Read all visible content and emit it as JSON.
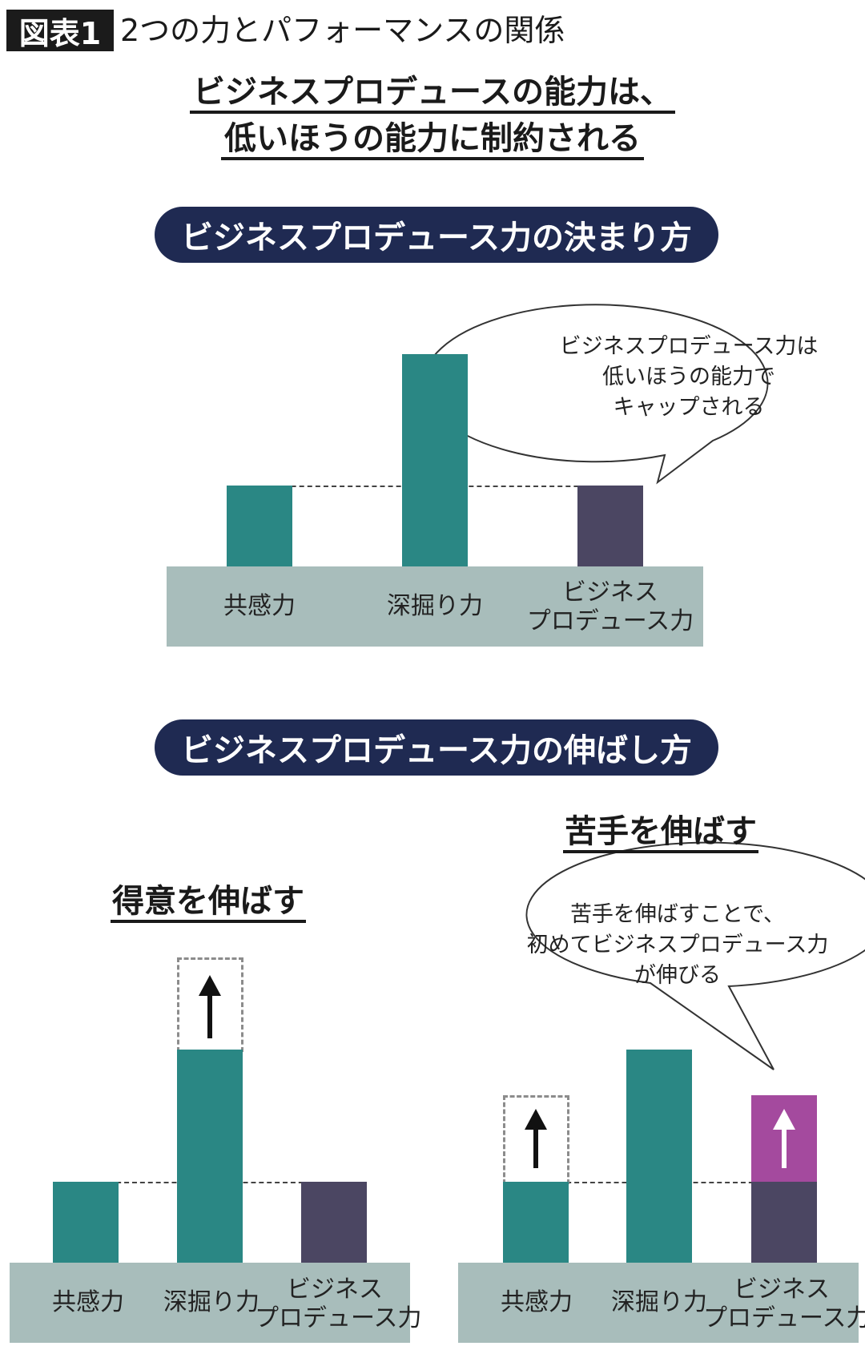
{
  "header": {
    "tag": "図表1",
    "title": "2つの力とパフォーマンスの関係"
  },
  "main_title": {
    "line1": "ビジネスプロデュースの能力は、",
    "line2": "低いほうの能力に制約される"
  },
  "section1": {
    "banner": "ビジネスプロデュース力の決まり方",
    "bubble": {
      "line1": "ビジネスプロデュース力は",
      "line2": "低いほうの能力で",
      "line3": "キャップされる"
    },
    "labels": {
      "empathy": "共感力",
      "digging": "深掘り力",
      "produce_line1": "ビジネス",
      "produce_line2": "プロデュース力"
    }
  },
  "section2": {
    "banner": "ビジネスプロデュース力の伸ばし方",
    "left": {
      "title": "得意を伸ばす",
      "labels": {
        "empathy": "共感力",
        "digging": "深掘り力",
        "produce_line1": "ビジネス",
        "produce_line2": "プロデュース力"
      }
    },
    "right": {
      "title": "苦手を伸ばす",
      "bubble": {
        "line1": "苦手を伸ばすことで、",
        "line2": "初めてビジネスプロデュース力",
        "line3": "が伸びる"
      },
      "labels": {
        "empathy": "共感力",
        "digging": "深掘り力",
        "produce_line1": "ビジネス",
        "produce_line2": "プロデュース力"
      }
    }
  },
  "colors": {
    "navy": "#1f2a52",
    "teal": "#2a8784",
    "purple": "#4b4662",
    "magenta": "#a44a9e",
    "base": "#a8bdbb"
  },
  "icons": [
    "up-arrow-icon"
  ]
}
